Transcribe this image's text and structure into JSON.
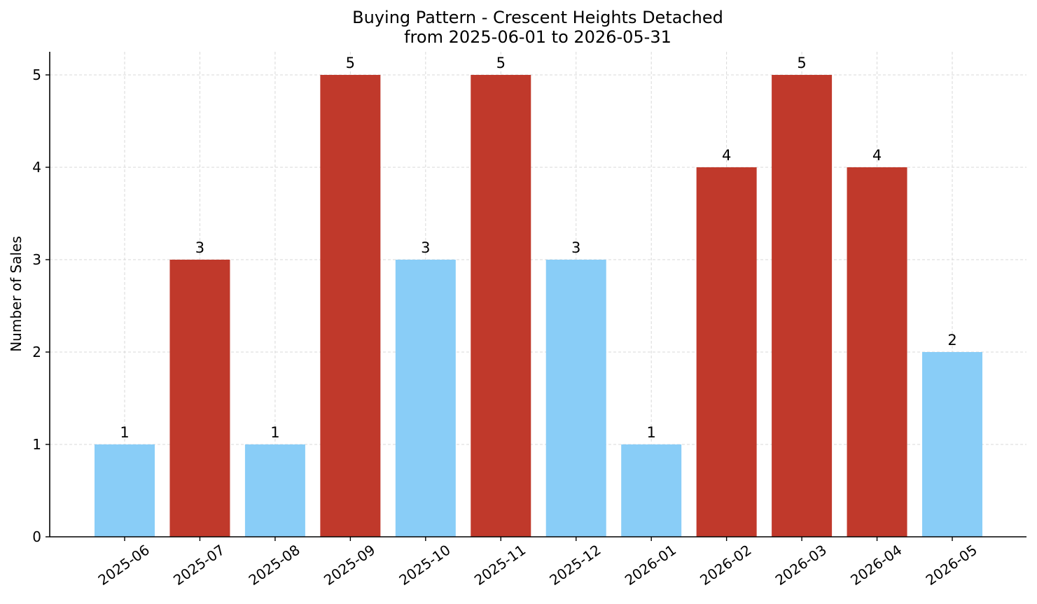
{
  "chart_data": {
    "type": "bar",
    "title": "Buying Pattern - Crescent Heights Detached",
    "subtitle": "from 2025-06-01 to 2026-05-31",
    "xlabel": "",
    "ylabel": "Number of Sales",
    "categories": [
      "2025-06",
      "2025-07",
      "2025-08",
      "2025-09",
      "2025-10",
      "2025-11",
      "2025-12",
      "2026-01",
      "2026-02",
      "2026-03",
      "2026-04",
      "2026-05"
    ],
    "values": [
      1,
      3,
      1,
      5,
      3,
      5,
      3,
      1,
      4,
      5,
      4,
      2
    ],
    "bar_colors": [
      "#89CDF7",
      "#C0392B",
      "#89CDF7",
      "#C0392B",
      "#89CDF7",
      "#C0392B",
      "#89CDF7",
      "#89CDF7",
      "#C0392B",
      "#C0392B",
      "#C0392B",
      "#89CDF7"
    ],
    "ylim": [
      0,
      5.25
    ],
    "yticks": [
      0,
      1,
      2,
      3,
      4,
      5
    ],
    "grid": true,
    "legend": "none"
  }
}
